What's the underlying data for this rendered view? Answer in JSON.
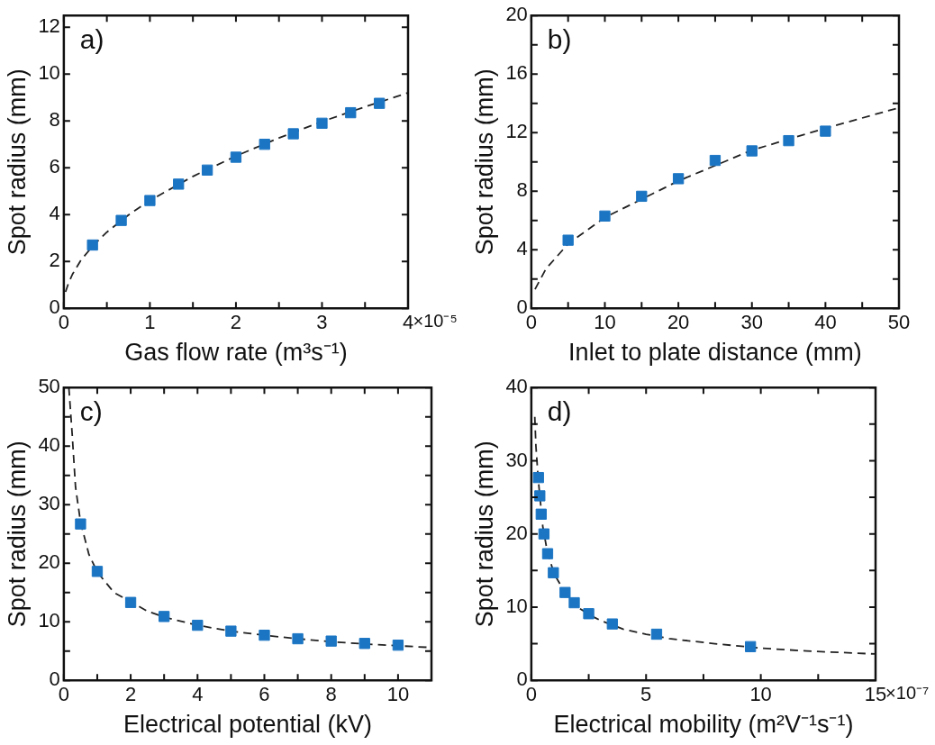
{
  "chart_data": [
    {
      "type": "scatter",
      "annotations": [
        "a)",
        "×10⁻⁵"
      ],
      "xlabel": "Gas flow rate (m³s⁻¹)",
      "ylabel": "Spot radius (mm)",
      "xlim": [
        0,
        4
      ],
      "ylim": [
        0,
        12.5
      ],
      "xticks": [
        0,
        {
          "value": 0.5,
          "label": null
        },
        1,
        {
          "value": 1.5,
          "label": null
        },
        2,
        {
          "value": 2.5,
          "label": null
        },
        3,
        {
          "value": 3.5,
          "label": null
        },
        4
      ],
      "yticks": [
        0,
        2,
        4,
        6,
        8,
        10,
        12
      ],
      "series": [
        {
          "marker": "square",
          "color": "#1b75c3",
          "x": [
            0.333,
            0.667,
            1,
            1.333,
            1.667,
            2,
            2.333,
            2.667,
            3,
            3.333,
            3.667
          ],
          "values": [
            2.7,
            3.75,
            4.6,
            5.3,
            5.9,
            6.45,
            7.0,
            7.45,
            7.9,
            8.35,
            8.75
          ]
        },
        {
          "type": "line",
          "marker": "none",
          "line_style": "dashed",
          "color": "#222222",
          "x": [
            0.02,
            0.05,
            0.1,
            0.2,
            0.35,
            0.5,
            0.75,
            1,
            1.5,
            2,
            2.5,
            3,
            3.5,
            4
          ],
          "values": [
            0.7,
            1.03,
            1.45,
            2.06,
            2.72,
            3.25,
            3.98,
            4.6,
            5.63,
            6.5,
            7.27,
            7.97,
            8.6,
            9.2
          ]
        }
      ]
    },
    {
      "type": "scatter",
      "annotations": [
        "b)"
      ],
      "xlabel": "Inlet to plate distance (mm)",
      "ylabel": "Spot radius (mm)",
      "xlim": [
        0,
        50
      ],
      "ylim": [
        0,
        20
      ],
      "xticks": [
        0,
        {
          "value": 5,
          "label": null
        },
        10,
        {
          "value": 15,
          "label": null
        },
        20,
        {
          "value": 25,
          "label": null
        },
        30,
        {
          "value": 35,
          "label": null
        },
        40,
        {
          "value": 45,
          "label": null
        },
        50
      ],
      "yticks": [
        0,
        {
          "value": 2,
          "label": null
        },
        4,
        {
          "value": 6,
          "label": null
        },
        8,
        {
          "value": 10,
          "label": null
        },
        12,
        {
          "value": 14,
          "label": null
        },
        16,
        {
          "value": 18,
          "label": null
        },
        20
      ],
      "series": [
        {
          "marker": "square",
          "color": "#1b75c3",
          "x": [
            5,
            10,
            15,
            20,
            25,
            30,
            35,
            40
          ],
          "values": [
            4.65,
            6.3,
            7.65,
            8.85,
            10.1,
            10.75,
            11.45,
            12.1
          ]
        },
        {
          "type": "line",
          "marker": "none",
          "line_style": "dashed",
          "color": "#222222",
          "x": [
            0.5,
            2,
            5,
            10,
            20,
            30,
            40,
            50
          ],
          "values": [
            1.3,
            2.7,
            4.4,
            6.2,
            8.7,
            10.8,
            12.3,
            13.7
          ]
        }
      ]
    },
    {
      "type": "scatter",
      "annotations": [
        "c)"
      ],
      "xlabel": "Electrical potential (kV)",
      "ylabel": "Spot radius (mm)",
      "xlim": [
        0,
        11
      ],
      "ylim": [
        0,
        50
      ],
      "xticks": [
        0,
        {
          "value": 1,
          "label": null
        },
        2,
        {
          "value": 3,
          "label": null
        },
        4,
        {
          "value": 5,
          "label": null
        },
        6,
        {
          "value": 7,
          "label": null
        },
        8,
        {
          "value": 9,
          "label": null
        },
        10
      ],
      "yticks": [
        0,
        {
          "value": 5,
          "label": null
        },
        10,
        {
          "value": 15,
          "label": null
        },
        20,
        {
          "value": 25,
          "label": null
        },
        30,
        {
          "value": 35,
          "label": null
        },
        40,
        {
          "value": 45,
          "label": null
        },
        50
      ],
      "series": [
        {
          "marker": "square",
          "color": "#1b75c3",
          "x": [
            0.5,
            1,
            2,
            3,
            4,
            5,
            6,
            7,
            8,
            9,
            10
          ],
          "values": [
            26.7,
            18.6,
            13.3,
            10.9,
            9.4,
            8.4,
            7.7,
            7.1,
            6.7,
            6.3,
            6.0
          ]
        },
        {
          "type": "line",
          "marker": "none",
          "line_style": "dashed",
          "color": "#222222",
          "x": [
            0.15,
            0.25,
            0.35,
            0.5,
            0.75,
            1,
            1.5,
            2.5,
            3,
            4,
            5,
            6,
            7,
            8,
            9,
            10,
            11
          ],
          "values": [
            50,
            42,
            33,
            27,
            21.5,
            18.5,
            15,
            11.8,
            10.8,
            9.4,
            8.4,
            7.7,
            7.1,
            6.6,
            6.2,
            5.9,
            5.6
          ]
        }
      ]
    },
    {
      "type": "scatter",
      "annotations": [
        "d)",
        "×10⁻⁷"
      ],
      "xlabel": "Electrical mobility (m²V⁻¹s⁻¹)",
      "ylabel": "Spot radius (mm)",
      "xlim": [
        0,
        15
      ],
      "ylim": [
        0,
        40
      ],
      "xticks": [
        0,
        {
          "value": 2.5,
          "label": null
        },
        5,
        {
          "value": 7.5,
          "label": null
        },
        10,
        {
          "value": 12.5,
          "label": null
        },
        15
      ],
      "yticks": [
        0,
        {
          "value": 5,
          "label": null
        },
        10,
        {
          "value": 15,
          "label": null
        },
        20,
        {
          "value": 25,
          "label": null
        },
        30,
        {
          "value": 35,
          "label": null
        },
        40
      ],
      "series": [
        {
          "marker": "square",
          "color": "#1b75c3",
          "x": [
            0.31,
            0.37,
            0.43,
            0.55,
            0.71,
            0.96,
            1.47,
            1.87,
            2.5,
            3.53,
            5.46,
            9.55
          ],
          "values": [
            27.7,
            25.2,
            22.7,
            20.0,
            17.3,
            14.7,
            12.0,
            10.6,
            9.1,
            7.7,
            6.3,
            4.6
          ]
        },
        {
          "type": "line",
          "marker": "none",
          "line_style": "dashed",
          "color": "#222222",
          "x": [
            0.15,
            0.2,
            0.3,
            0.5,
            0.7,
            1,
            1.5,
            2,
            2.75,
            3,
            4,
            5,
            6,
            8,
            10,
            12,
            15
          ],
          "values": [
            36,
            32,
            27.5,
            21,
            17.5,
            14.5,
            11.8,
            10,
            8.6,
            8.2,
            7,
            6.3,
            5.7,
            5,
            4.4,
            4,
            3.6
          ]
        }
      ]
    }
  ]
}
